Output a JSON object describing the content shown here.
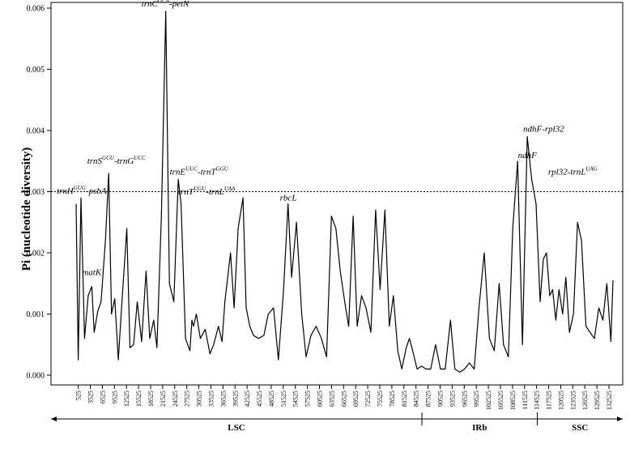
{
  "chart_data": {
    "type": "line",
    "ylabel": "Pi (nucleotide diversity)",
    "ylim": [
      0,
      0.006
    ],
    "yticks": [
      "0.000",
      "0.001",
      "0.002",
      "0.003",
      "0.004",
      "0.005",
      "0.006"
    ],
    "threshold": 0.003,
    "xlim": [
      1,
      133525
    ],
    "xtick_start": 525,
    "xtick_step": 3000,
    "x": [
      1,
      525,
      1200,
      2100,
      3000,
      3900,
      4500,
      5400,
      6200,
      7300,
      8100,
      8800,
      9600,
      10500,
      11400,
      12600,
      13400,
      14300,
      15200,
      16300,
      17400,
      18300,
      19300,
      20100,
      21200,
      22300,
      23200,
      24300,
      25400,
      26100,
      27200,
      28300,
      28800,
      29200,
      29900,
      30900,
      32100,
      33300,
      34200,
      35400,
      36300,
      37000,
      38400,
      39300,
      40300,
      41500,
      42300,
      43200,
      44100,
      45400,
      46700,
      47800,
      49100,
      50300,
      51600,
      52700,
      53600,
      54800,
      56100,
      57200,
      58400,
      59700,
      61000,
      62300,
      63500,
      64600,
      65700,
      66800,
      67800,
      68900,
      69900,
      71000,
      72100,
      73300,
      74500,
      75600,
      76800,
      77900,
      78900,
      80000,
      81000,
      82100,
      82900,
      83700,
      84800,
      85900,
      87000,
      88200,
      89400,
      90600,
      91800,
      93100,
      94200,
      95400,
      96600,
      97800,
      99000,
      100200,
      101500,
      102800,
      104000,
      105200,
      106300,
      107500,
      108600,
      109800,
      111000,
      112200,
      113300,
      114400,
      115400,
      116200,
      117000,
      117800,
      118500,
      119300,
      120100,
      121000,
      121800,
      122700,
      123700,
      124700,
      125700,
      126800,
      127800,
      128900,
      130000,
      131000,
      132000,
      133000,
      133525
    ],
    "y": [
      0.0028,
      0.00025,
      0.0029,
      0.0006,
      0.0013,
      0.00145,
      0.0007,
      0.00105,
      0.0012,
      0.0022,
      0.0033,
      0.001,
      0.00125,
      0.00025,
      0.0012,
      0.0024,
      0.00045,
      0.0005,
      0.0012,
      0.00055,
      0.0017,
      0.0006,
      0.0009,
      0.00045,
      0.0026,
      0.00595,
      0.0015,
      0.0012,
      0.0032,
      0.0028,
      0.0006,
      0.0004,
      0.0009,
      0.0008,
      0.001,
      0.0006,
      0.00075,
      0.00035,
      0.0005,
      0.0008,
      0.00055,
      0.0012,
      0.002,
      0.0011,
      0.0024,
      0.0029,
      0.0011,
      0.0008,
      0.00065,
      0.0006,
      0.00065,
      0.001,
      0.0011,
      0.00025,
      0.0014,
      0.0028,
      0.0016,
      0.0025,
      0.001,
      0.0003,
      0.00065,
      0.0008,
      0.0006,
      0.0003,
      0.0026,
      0.0024,
      0.0017,
      0.0012,
      0.0008,
      0.0026,
      0.0008,
      0.0013,
      0.0011,
      0.0007,
      0.0027,
      0.0014,
      0.0027,
      0.0008,
      0.0013,
      0.0004,
      0.0001,
      0.00045,
      0.0006,
      0.0004,
      0.0001,
      0.00015,
      0.0001,
      0.0001,
      0.0005,
      0.0001,
      0.0001,
      0.0009,
      0.0001,
      5e-05,
      0.0001,
      0.0002,
      0.0001,
      0.0011,
      0.002,
      0.0006,
      0.0004,
      0.0015,
      0.0005,
      0.0003,
      0.0024,
      0.0035,
      0.0005,
      0.0039,
      0.0032,
      0.0028,
      0.0012,
      0.0019,
      0.002,
      0.0013,
      0.0014,
      0.0009,
      0.0014,
      0.001,
      0.0016,
      0.0007,
      0.001,
      0.0025,
      0.0022,
      0.0008,
      0.0007,
      0.0006,
      0.0011,
      0.0009,
      0.0015,
      0.00055,
      0.00155
    ],
    "annotations": [
      {
        "id": "a1",
        "x": 1200,
        "y": 0.0029,
        "parts": [
          [
            "trnH",
            ""
          ],
          [
            "GUG",
            "sup"
          ],
          [
            "-psbA",
            ""
          ]
        ]
      },
      {
        "id": "a2",
        "x": 3900,
        "y": 0.00145,
        "parts": [
          [
            "matK",
            ""
          ]
        ]
      },
      {
        "id": "a3",
        "x": 8800,
        "y": 0.0033,
        "parts": [
          [
            "trnS",
            ""
          ],
          [
            "GCU",
            "sup"
          ],
          [
            "-trnG",
            ""
          ],
          [
            "UCC",
            "sup"
          ]
        ]
      },
      {
        "id": "a4",
        "x": 22300,
        "y": 0.00595,
        "parts": [
          [
            "trnC",
            ""
          ],
          [
            "GCA",
            "sup"
          ],
          [
            "-petN",
            ""
          ]
        ]
      },
      {
        "id": "a5",
        "x": 26100,
        "y": 0.0032,
        "parts": [
          [
            "trnE",
            ""
          ],
          [
            "UUC",
            "sup"
          ],
          [
            "-trnT",
            ""
          ],
          [
            "GGU",
            "sup"
          ]
        ]
      },
      {
        "id": "a6",
        "x": 41500,
        "y": 0.0029,
        "parts": [
          [
            "trnT",
            ""
          ],
          [
            "UGU",
            "sup"
          ],
          [
            "-trnL",
            ""
          ],
          [
            "UAA",
            "sup"
          ]
        ]
      },
      {
        "id": "a7",
        "x": 52700,
        "y": 0.0028,
        "parts": [
          [
            "rbcL",
            ""
          ]
        ]
      },
      {
        "id": "a8",
        "x": 113300,
        "y": 0.0035,
        "parts": [
          [
            "ndhF",
            ""
          ]
        ]
      },
      {
        "id": "a9",
        "x": 115400,
        "y": 0.0039,
        "parts": [
          [
            "ndhF-rpl32",
            ""
          ]
        ]
      },
      {
        "id": "a10",
        "x": 117800,
        "y": 0.0032,
        "parts": [
          [
            "rpl32-trnL",
            ""
          ],
          [
            "UAG",
            "sup"
          ]
        ]
      }
    ],
    "regions": [
      {
        "name": "LSC",
        "start": 1,
        "end": 86000
      },
      {
        "name": "IRb",
        "start": 86000,
        "end": 114700
      },
      {
        "name": "SSC",
        "start": 114700,
        "end": 133525
      }
    ]
  }
}
